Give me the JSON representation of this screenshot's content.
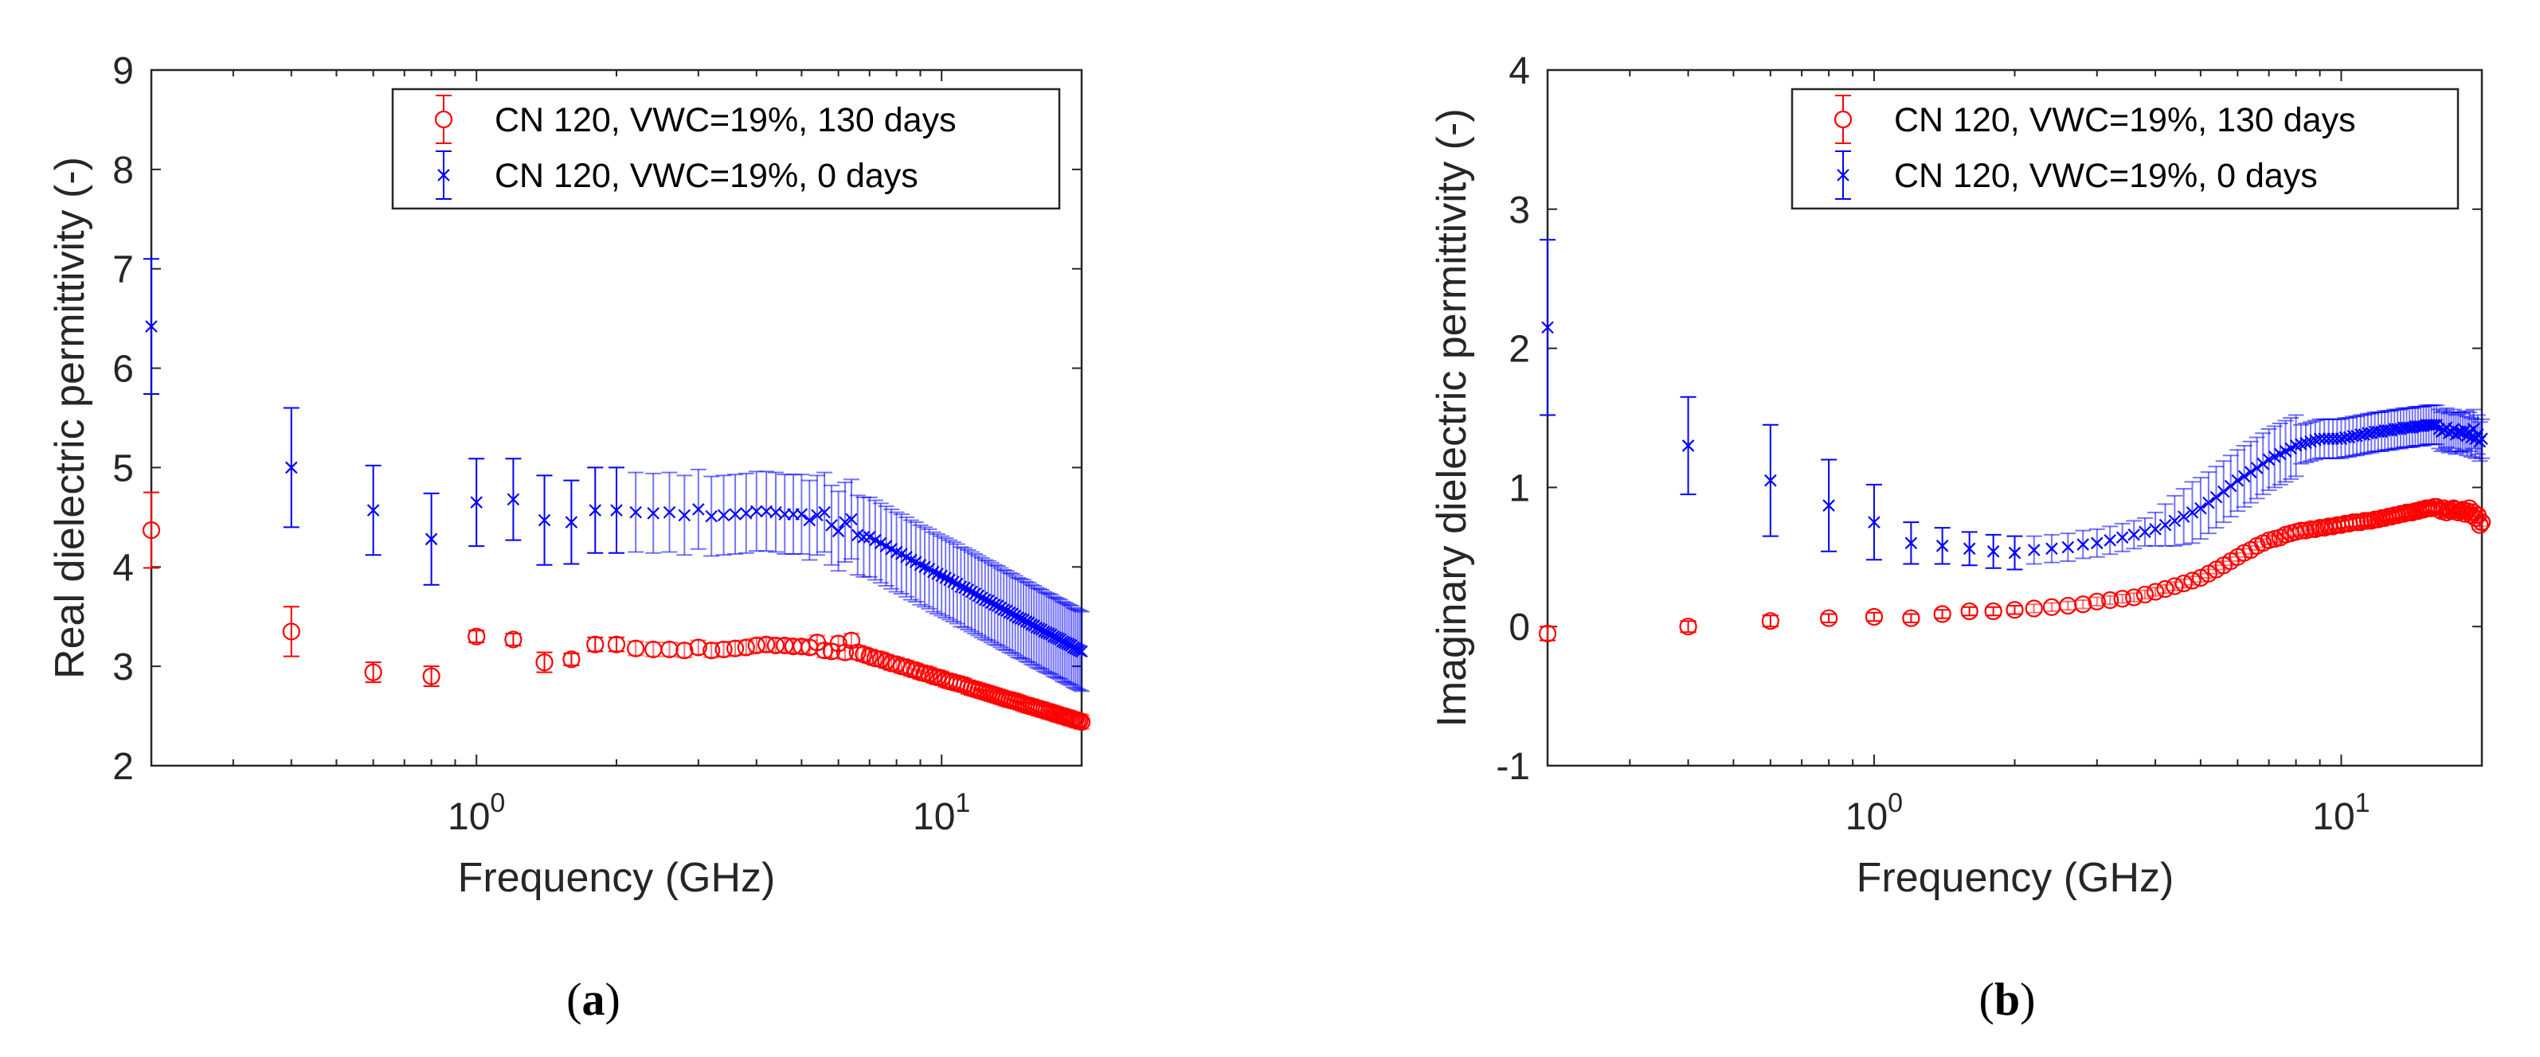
{
  "chart_data": [
    {
      "type": "scatter",
      "panel_label": "a",
      "xlabel": "Frequency (GHz)",
      "ylabel": "Real dielectric permittivity (-)",
      "xscale": "log",
      "xlim": [
        0.2,
        20
      ],
      "ylim": [
        2,
        9
      ],
      "yticks": [
        "2",
        "3",
        "4",
        "5",
        "6",
        "7",
        "8",
        "9"
      ],
      "xticks": [
        {
          "value": 1,
          "base": "10",
          "exp": "0"
        },
        {
          "value": 10,
          "base": "10",
          "exp": "1"
        }
      ],
      "legend_position": "top-right",
      "series": [
        {
          "name": "CN 120, VWC=19%, 130 days",
          "color": "#ff0000",
          "marker": "circle",
          "values": [
            4.37,
            3.35,
            2.94,
            2.9,
            3.3,
            3.27,
            3.04,
            3.07,
            3.22,
            3.22,
            3.18,
            3.17,
            3.17,
            3.16,
            3.19,
            3.16,
            3.17,
            3.18,
            3.19,
            3.21,
            3.22,
            3.21,
            3.21,
            3.2,
            3.2,
            3.19,
            3.24,
            3.16,
            3.15,
            3.23,
            3.14,
            3.26,
            3.14,
            3.12,
            3.1,
            3.08,
            3.07,
            3.05,
            3.03,
            3.02,
            3.0,
            2.99,
            2.97,
            2.96,
            2.94,
            2.93,
            2.92,
            2.9,
            2.89,
            2.88,
            2.86,
            2.85,
            2.84,
            2.83,
            2.82,
            2.81,
            2.79,
            2.78,
            2.77,
            2.76,
            2.75,
            2.74,
            2.73,
            2.72,
            2.71,
            2.7,
            2.69,
            2.68,
            2.67,
            2.66,
            2.66,
            2.65,
            2.64,
            2.63,
            2.62,
            2.61,
            2.6,
            2.6,
            2.59,
            2.58,
            2.57,
            2.57,
            2.56,
            2.55,
            2.54,
            2.54,
            2.53,
            2.52,
            2.51,
            2.51,
            2.5,
            2.49,
            2.49,
            2.48,
            2.47,
            2.47,
            2.46,
            2.45,
            2.45,
            2.44
          ],
          "yerr": [
            0.38,
            0.25,
            0.1,
            0.1,
            0.06,
            0.06,
            0.1,
            0.06
          ],
          "yerr_rest": 0.07
        },
        {
          "name": "CN 120, VWC=19%, 0 days",
          "color": "#0000ff",
          "marker": "x",
          "values": [
            6.42,
            5.0,
            4.57,
            4.28,
            4.65,
            4.68,
            4.47,
            4.45,
            4.57,
            4.57,
            4.55,
            4.54,
            4.55,
            4.52,
            4.58,
            4.51,
            4.52,
            4.53,
            4.54,
            4.56,
            4.56,
            4.55,
            4.53,
            4.53,
            4.53,
            4.47,
            4.52,
            4.55,
            4.42,
            4.36,
            4.45,
            4.48,
            4.32,
            4.3,
            4.3,
            4.27,
            4.24,
            4.21,
            4.18,
            4.15,
            4.13,
            4.1,
            4.07,
            4.05,
            4.02,
            4.0,
            3.98,
            3.95,
            3.93,
            3.91,
            3.89,
            3.87,
            3.85,
            3.83,
            3.8,
            3.79,
            3.77,
            3.75,
            3.73,
            3.71,
            3.69,
            3.67,
            3.66,
            3.64,
            3.62,
            3.61,
            3.59,
            3.57,
            3.56,
            3.54,
            3.53,
            3.51,
            3.49,
            3.48,
            3.47,
            3.45,
            3.44,
            3.42,
            3.41,
            3.39,
            3.38,
            3.37,
            3.35,
            3.34,
            3.33,
            3.32,
            3.3,
            3.29,
            3.28,
            3.27,
            3.25,
            3.24,
            3.23,
            3.22,
            3.21,
            3.19,
            3.18,
            3.17,
            3.16,
            3.15
          ],
          "yerr": [
            0.68,
            0.6,
            0.45,
            0.46,
            0.44,
            0.41,
            0.45,
            0.42,
            0.43,
            0.43
          ],
          "yerr_rest": 0.4
        }
      ]
    },
    {
      "type": "scatter",
      "panel_label": "b",
      "xlabel": "Frequency (GHz)",
      "ylabel": "Imaginary dielectric permittivity (-)",
      "xscale": "log",
      "xlim": [
        0.2,
        20
      ],
      "ylim": [
        -1,
        4
      ],
      "yticks": [
        "-1",
        "0",
        "1",
        "2",
        "3",
        "4"
      ],
      "xticks": [
        {
          "value": 1,
          "base": "10",
          "exp": "0"
        },
        {
          "value": 10,
          "base": "10",
          "exp": "1"
        }
      ],
      "legend_position": "top-right",
      "series": [
        {
          "name": "CN 120, VWC=19%, 130 days",
          "color": "#ff0000",
          "marker": "circle",
          "values": [
            -0.05,
            0.0,
            0.04,
            0.06,
            0.07,
            0.06,
            0.09,
            0.11,
            0.11,
            0.12,
            0.13,
            0.14,
            0.15,
            0.16,
            0.18,
            0.19,
            0.2,
            0.21,
            0.23,
            0.25,
            0.27,
            0.29,
            0.31,
            0.33,
            0.35,
            0.38,
            0.41,
            0.44,
            0.47,
            0.5,
            0.53,
            0.55,
            0.58,
            0.6,
            0.62,
            0.63,
            0.64,
            0.66,
            0.67,
            0.68,
            0.69,
            0.69,
            0.7,
            0.7,
            0.71,
            0.71,
            0.72,
            0.72,
            0.73,
            0.73,
            0.74,
            0.74,
            0.75,
            0.75,
            0.75,
            0.76,
            0.76,
            0.76,
            0.77,
            0.77,
            0.78,
            0.78,
            0.79,
            0.79,
            0.8,
            0.8,
            0.81,
            0.81,
            0.82,
            0.82,
            0.82,
            0.83,
            0.83,
            0.84,
            0.84,
            0.85,
            0.85,
            0.85,
            0.86,
            0.86,
            0.84,
            0.83,
            0.85,
            0.82,
            0.84,
            0.83,
            0.85,
            0.84,
            0.82,
            0.83,
            0.84,
            0.81,
            0.83,
            0.85,
            0.8,
            0.82,
            0.78,
            0.8,
            0.73,
            0.75
          ],
          "yerr": [
            0.05,
            0.04,
            0.04,
            0.03
          ],
          "yerr_rest": 0.03
        },
        {
          "name": "CN 120, VWC=19%, 0 days",
          "color": "#0000ff",
          "marker": "x",
          "values": [
            2.15,
            1.3,
            1.05,
            0.87,
            0.75,
            0.6,
            0.58,
            0.56,
            0.54,
            0.53,
            0.55,
            0.56,
            0.57,
            0.59,
            0.6,
            0.62,
            0.64,
            0.66,
            0.68,
            0.7,
            0.73,
            0.76,
            0.79,
            0.82,
            0.85,
            0.89,
            0.93,
            0.97,
            1.01,
            1.05,
            1.08,
            1.11,
            1.14,
            1.17,
            1.2,
            1.22,
            1.24,
            1.26,
            1.28,
            1.3,
            1.31,
            1.32,
            1.33,
            1.34,
            1.35,
            1.35,
            1.35,
            1.35,
            1.35,
            1.35,
            1.36,
            1.36,
            1.37,
            1.37,
            1.38,
            1.38,
            1.39,
            1.39,
            1.4,
            1.4,
            1.4,
            1.41,
            1.41,
            1.41,
            1.42,
            1.42,
            1.42,
            1.43,
            1.43,
            1.43,
            1.43,
            1.44,
            1.44,
            1.44,
            1.44,
            1.45,
            1.45,
            1.45,
            1.45,
            1.45,
            1.42,
            1.4,
            1.41,
            1.43,
            1.39,
            1.4,
            1.42,
            1.38,
            1.4,
            1.4,
            1.39,
            1.41,
            1.37,
            1.4,
            1.36,
            1.42,
            1.35,
            1.38,
            1.33,
            1.35
          ],
          "yerr": [
            0.63,
            0.35,
            0.4,
            0.33,
            0.27,
            0.15,
            0.13,
            0.12,
            0.12,
            0.12,
            0.1,
            0.1,
            0.1,
            0.1,
            0.1,
            0.1,
            0.1,
            0.1,
            0.1,
            0.12,
            0.15,
            0.18,
            0.2,
            0.22,
            0.22,
            0.22,
            0.22,
            0.22,
            0.22,
            0.22,
            0.22,
            0.22,
            0.22,
            0.22,
            0.22,
            0.22,
            0.22,
            0.22,
            0.22,
            0.22
          ],
          "yerr_rest": 0.14
        }
      ]
    }
  ],
  "x": [
    0.2,
    0.4,
    0.6,
    0.8,
    1.0,
    1.2,
    1.4,
    1.6,
    1.8,
    2.0,
    2.2,
    2.4,
    2.6,
    2.8,
    3.0,
    3.2,
    3.4,
    3.6,
    3.8,
    4.0,
    4.2,
    4.4,
    4.6,
    4.8,
    5.0,
    5.2,
    5.4,
    5.6,
    5.8,
    6.0,
    6.2,
    6.4,
    6.6,
    6.8,
    7.0,
    7.2,
    7.4,
    7.6,
    7.8,
    8.0,
    8.2,
    8.4,
    8.6,
    8.8,
    9.0,
    9.2,
    9.4,
    9.6,
    9.8,
    10.0,
    10.2,
    10.4,
    10.6,
    10.8,
    11.0,
    11.2,
    11.4,
    11.6,
    11.8,
    12.0,
    12.2,
    12.4,
    12.6,
    12.8,
    13.0,
    13.2,
    13.4,
    13.6,
    13.8,
    14.0,
    14.2,
    14.4,
    14.6,
    14.8,
    15.0,
    15.2,
    15.4,
    15.6,
    15.8,
    16.0,
    16.2,
    16.4,
    16.6,
    16.8,
    17.0,
    17.2,
    17.4,
    17.6,
    17.8,
    18.0,
    18.2,
    18.4,
    18.6,
    18.8,
    19.0,
    19.2,
    19.4,
    19.6,
    19.8,
    20.0
  ]
}
